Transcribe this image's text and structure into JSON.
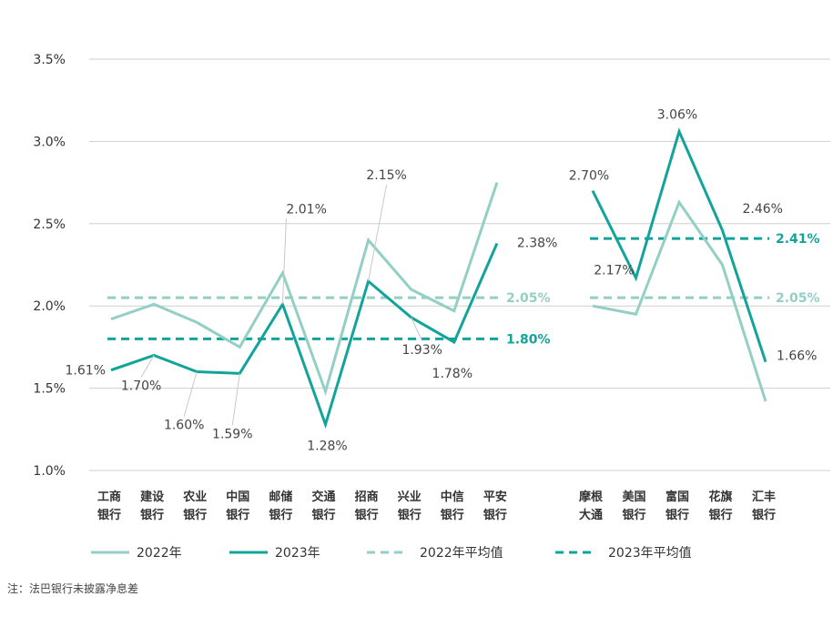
{
  "chart_data": {
    "type": "line",
    "y_axis": {
      "min": 1.0,
      "max": 3.5,
      "ticks": [
        "1.0%",
        "1.5%",
        "2.0%",
        "2.5%",
        "3.0%",
        "3.5%"
      ],
      "tick_values": [
        1.0,
        1.5,
        2.0,
        2.5,
        3.0,
        3.5
      ]
    },
    "groups": [
      {
        "name": "domestic",
        "categories": [
          [
            "工商",
            "银行"
          ],
          [
            "建设",
            "银行"
          ],
          [
            "农业",
            "银行"
          ],
          [
            "中国",
            "银行"
          ],
          [
            "邮储",
            "银行"
          ],
          [
            "交通",
            "银行"
          ],
          [
            "招商",
            "银行"
          ],
          [
            "兴业",
            "银行"
          ],
          [
            "中信",
            "银行"
          ],
          [
            "平安",
            "银行"
          ]
        ],
        "series": [
          {
            "name": "2022年",
            "values": [
              1.92,
              2.01,
              1.9,
              1.75,
              2.2,
              1.48,
              2.4,
              2.1,
              1.97,
              2.75
            ]
          },
          {
            "name": "2023年",
            "values": [
              1.61,
              1.7,
              1.6,
              1.59,
              2.01,
              1.28,
              2.15,
              1.93,
              1.78,
              2.38
            ]
          }
        ],
        "averages": [
          {
            "name": "2022年平均值",
            "value": 2.05,
            "label": "2.05%"
          },
          {
            "name": "2023年平均值",
            "value": 1.8,
            "label": "1.80%"
          }
        ],
        "data_labels": [
          "1.61%",
          "1.70%",
          "1.60%",
          "1.59%",
          "2.01%",
          "1.28%",
          "2.15%",
          "1.93%",
          "1.78%",
          "2.38%"
        ]
      },
      {
        "name": "foreign",
        "categories": [
          [
            "摩根",
            "大通"
          ],
          [
            "美国",
            "银行"
          ],
          [
            "富国",
            "银行"
          ],
          [
            "花旗",
            "银行"
          ],
          [
            "汇丰",
            "银行"
          ]
        ],
        "series": [
          {
            "name": "2022年",
            "values": [
              2.0,
              1.95,
              2.63,
              2.25,
              1.42
            ]
          },
          {
            "name": "2023年",
            "values": [
              2.7,
              2.17,
              3.06,
              2.46,
              1.66
            ]
          }
        ],
        "averages": [
          {
            "name": "2022年平均值",
            "value": 2.05,
            "label": "2.05%"
          },
          {
            "name": "2023年平均值",
            "value": 2.41,
            "label": "2.41%"
          }
        ],
        "data_labels": [
          "2.70%",
          "2.17%",
          "3.06%",
          "2.46%",
          "1.66%"
        ]
      }
    ],
    "legend": [
      "2022年",
      "2023年",
      "2022年平均值",
      "2023年平均值"
    ],
    "colors": {
      "y2022": "#93cfc4",
      "y2023": "#12a49b"
    }
  },
  "note": "注：法巴银行未披露净息差"
}
